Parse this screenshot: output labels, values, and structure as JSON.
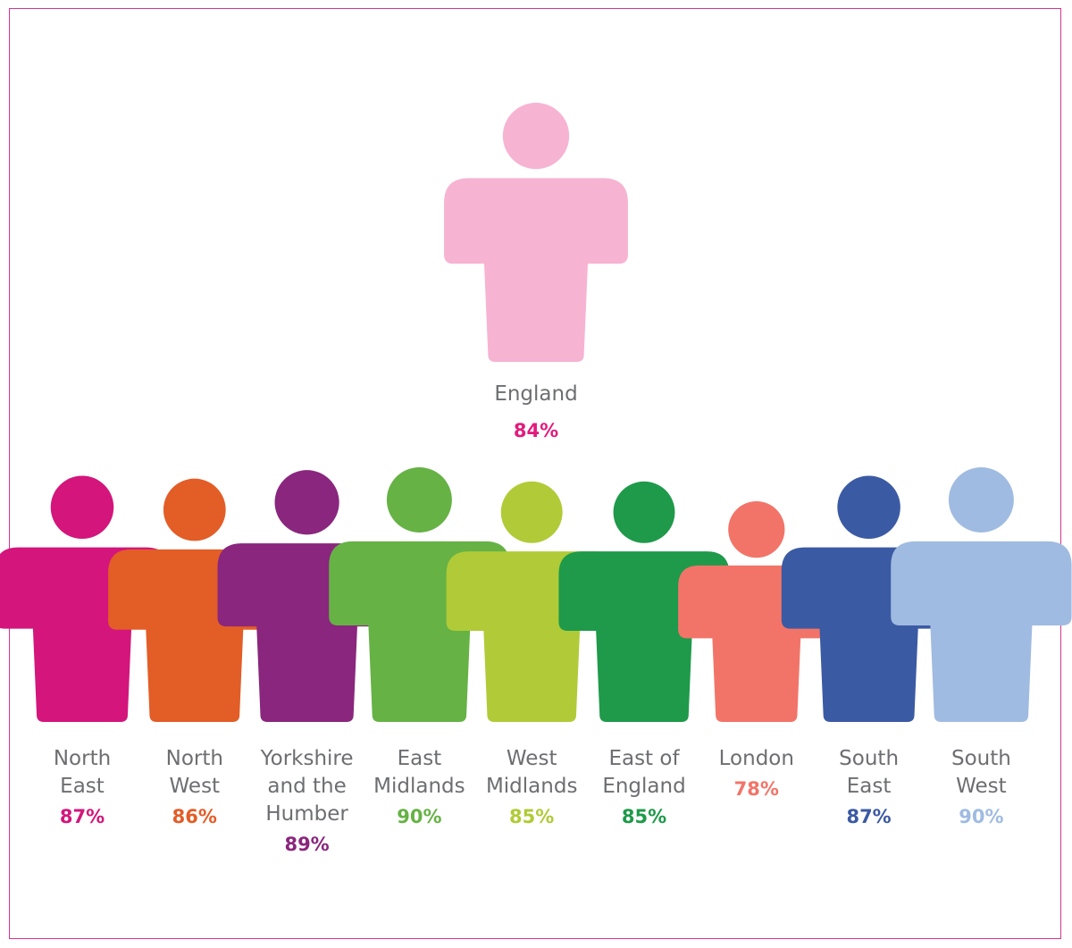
{
  "chart_data": {
    "type": "pictogram",
    "overall": {
      "label": "England",
      "value": 84,
      "value_text": "84%",
      "color": "#f7b3d2",
      "text_color": "#e31b7d"
    },
    "regions": [
      {
        "label": "North\nEast",
        "value": 87,
        "value_text": "87%",
        "color": "#d4157b"
      },
      {
        "label": "North\nWest",
        "value": 86,
        "value_text": "86%",
        "color": "#e35d27"
      },
      {
        "label": "Yorkshire\nand the\nHumber",
        "value": 89,
        "value_text": "89%",
        "color": "#8a267d"
      },
      {
        "label": "East\nMidlands",
        "value": 90,
        "value_text": "90%",
        "color": "#66b245"
      },
      {
        "label": "West\nMidlands",
        "value": 85,
        "value_text": "85%",
        "color": "#b0cb37"
      },
      {
        "label": "East of\nEngland",
        "value": 85,
        "value_text": "85%",
        "color": "#1e9a4a"
      },
      {
        "label": "London",
        "value": 78,
        "value_text": "78%",
        "color": "#f27468"
      },
      {
        "label": "South\nEast",
        "value": 87,
        "value_text": "87%",
        "color": "#3b5aa4"
      },
      {
        "label": "South\nWest",
        "value": 90,
        "value_text": "90%",
        "color": "#a0bbe1"
      }
    ]
  }
}
